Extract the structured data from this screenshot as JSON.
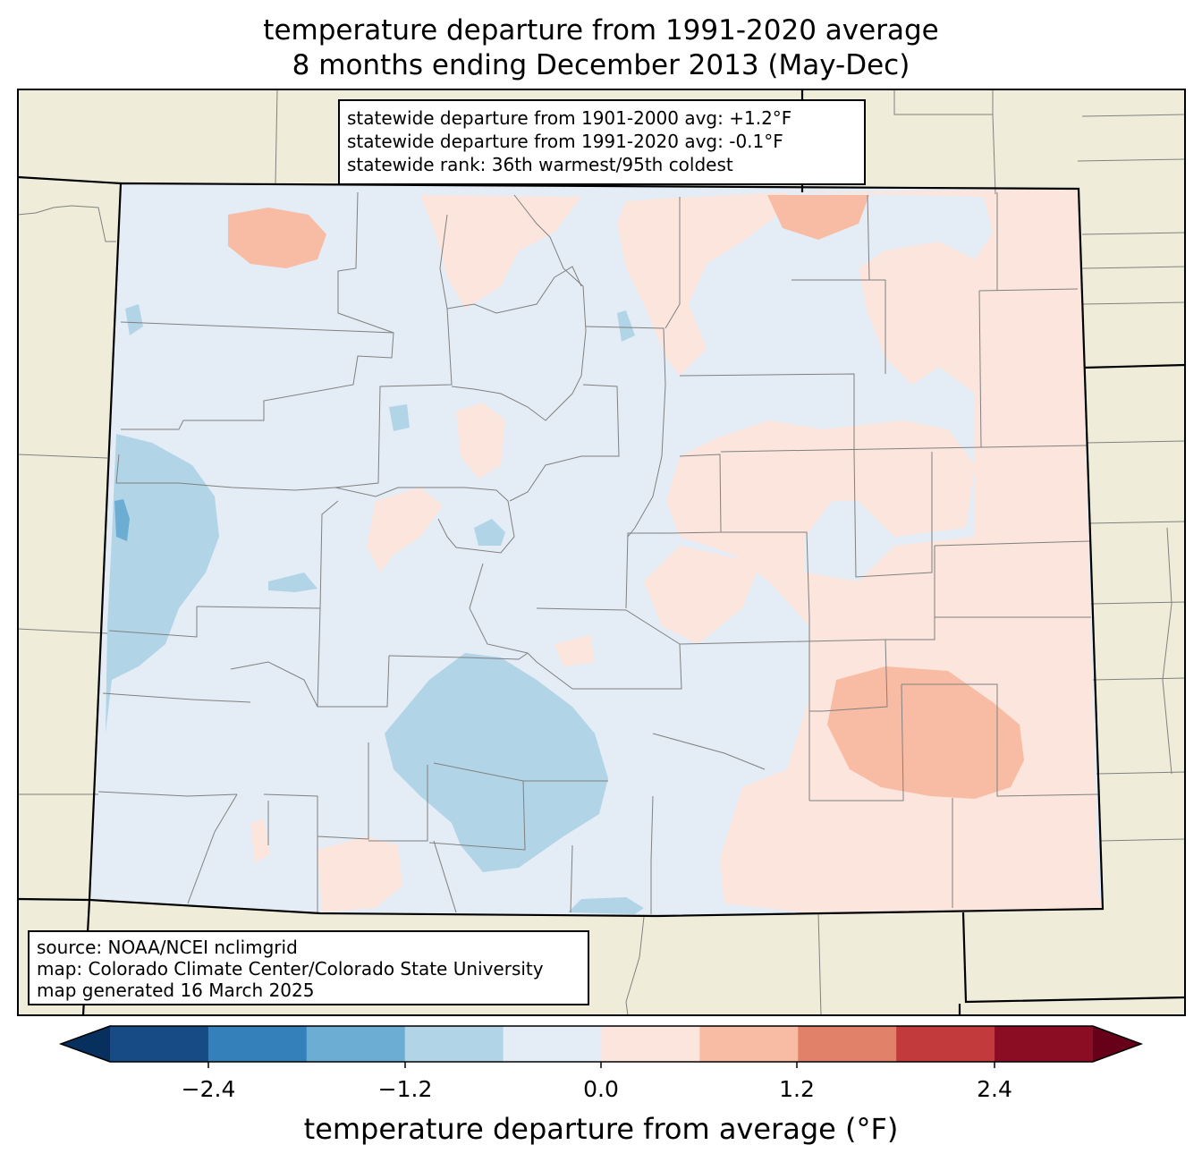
{
  "title": {
    "line1": "temperature departure from 1991-2020 average",
    "line2": "8 months ending December 2013 (May-Dec)"
  },
  "stats_box": {
    "line1": "statewide departure from 1901-2000 avg: +1.2°F",
    "line2": "statewide departure from 1991-2020 avg: -0.1°F",
    "line3": "statewide rank: 36th warmest/95th coldest"
  },
  "source_box": {
    "line1": "source: NOAA/NCEI nclimgrid",
    "line2": "map: Colorado Climate Center/Colorado State University",
    "line3": "map generated 16 March 2025"
  },
  "colorbar": {
    "label": "temperature departure from average (°F)",
    "ticks": [
      "−2.4",
      "−1.2",
      "0.0",
      "1.2",
      "2.4"
    ],
    "bins": [
      {
        "range": "<-3.0",
        "color": "#08305f"
      },
      {
        "range": "-3.0 to -2.4",
        "color": "#174b85"
      },
      {
        "range": "-2.4 to -1.8",
        "color": "#3380bb"
      },
      {
        "range": "-1.8 to -1.2",
        "color": "#6cadd3"
      },
      {
        "range": "-1.2 to -0.6",
        "color": "#b1d4e7"
      },
      {
        "range": "-0.6 to 0.0",
        "color": "#e4edf5"
      },
      {
        "range": "0.0 to 0.6",
        "color": "#fbe5dc"
      },
      {
        "range": "0.6 to 1.2",
        "color": "#f8bca4"
      },
      {
        "range": "1.2 to 1.8",
        "color": "#e2816a"
      },
      {
        "range": "1.8 to 2.4",
        "color": "#c23a3b"
      },
      {
        "range": "2.4 to 3.0",
        "color": "#8a0d24"
      },
      {
        "range": ">3.0",
        "color": "#670019"
      }
    ]
  },
  "map_colors": {
    "land_outside": "#efedd9",
    "county_lines": "#808080",
    "state_lines": "#000000"
  }
}
